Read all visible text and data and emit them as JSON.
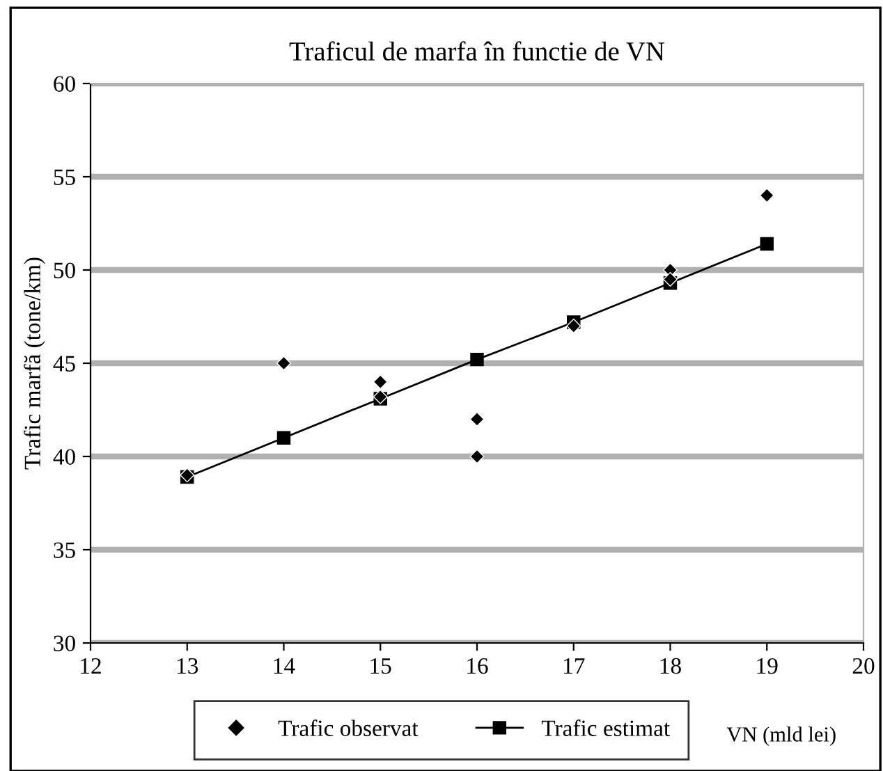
{
  "chart_data": {
    "type": "scatter",
    "title": "Traficul de marfa în functie de VN",
    "xlabel": "VN (mld lei)",
    "ylabel": "Trafic marfă (tone/km)",
    "series": [
      {
        "name": "Trafic observat",
        "marker": "diamond",
        "color": "#000000",
        "x": [
          13,
          14,
          15,
          15,
          16,
          16,
          17,
          18,
          18,
          19
        ],
        "values": [
          39,
          45,
          44,
          43.2,
          42,
          40,
          47,
          50,
          49.5,
          54
        ]
      },
      {
        "name": "Trafic estimat",
        "type": "line",
        "marker": "square",
        "color": "#000000",
        "x": [
          13,
          14,
          15,
          16,
          17,
          18,
          19
        ],
        "values": [
          38.9,
          41,
          43.1,
          45.2,
          47.2,
          49.3,
          51.4
        ]
      }
    ],
    "xlim": [
      12,
      20
    ],
    "xticks": [
      12,
      13,
      14,
      15,
      16,
      17,
      18,
      19,
      20
    ],
    "ylim": [
      30,
      60
    ],
    "yticks": [
      30,
      35,
      40,
      45,
      50,
      55,
      60
    ],
    "grid": "y",
    "legend": "bottom"
  }
}
